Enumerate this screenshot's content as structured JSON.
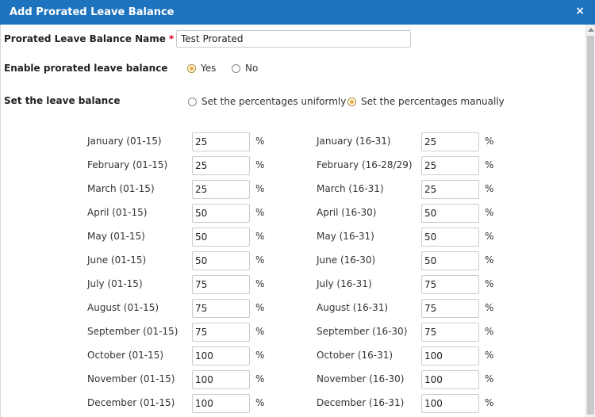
{
  "dialog": {
    "title": "Add Prorated Leave Balance",
    "close_glyph": "×"
  },
  "form": {
    "name_label": "Prorated Leave Balance Name",
    "required_mark": "*",
    "name_value": "Test Prorated",
    "enable_label": "Enable prorated leave balance",
    "enable_options": [
      {
        "label": "Yes",
        "selected": true
      },
      {
        "label": "No",
        "selected": false
      }
    ],
    "balance_label": "Set the leave balance",
    "balance_options": [
      {
        "label": "Set the percentages uniformly",
        "selected": false
      },
      {
        "label": "Set the percentages manually",
        "selected": true
      }
    ],
    "percent_sign": "%"
  },
  "periods_left": [
    {
      "label": "January (01-15)",
      "value": "25"
    },
    {
      "label": "February (01-15)",
      "value": "25"
    },
    {
      "label": "March (01-15)",
      "value": "25"
    },
    {
      "label": "April (01-15)",
      "value": "50"
    },
    {
      "label": "May (01-15)",
      "value": "50"
    },
    {
      "label": "June (01-15)",
      "value": "50"
    },
    {
      "label": "July (01-15)",
      "value": "75"
    },
    {
      "label": "August (01-15)",
      "value": "75"
    },
    {
      "label": "September (01-15)",
      "value": "75"
    },
    {
      "label": "October (01-15)",
      "value": "100"
    },
    {
      "label": "November (01-15)",
      "value": "100"
    },
    {
      "label": "December (01-15)",
      "value": "100"
    }
  ],
  "periods_right": [
    {
      "label": "January (16-31)",
      "value": "25"
    },
    {
      "label": "February (16-28/29)",
      "value": "25"
    },
    {
      "label": "March (16-31)",
      "value": "25"
    },
    {
      "label": "April (16-30)",
      "value": "50"
    },
    {
      "label": "May (16-31)",
      "value": "50"
    },
    {
      "label": "June (16-30)",
      "value": "50"
    },
    {
      "label": "July (16-31)",
      "value": "75"
    },
    {
      "label": "August (16-31)",
      "value": "75"
    },
    {
      "label": "September (16-30)",
      "value": "75"
    },
    {
      "label": "October (16-31)",
      "value": "100"
    },
    {
      "label": "November (16-30)",
      "value": "100"
    },
    {
      "label": "December (16-31)",
      "value": "100"
    }
  ],
  "colors": {
    "titlebar": "#1e73be",
    "radio_selected": "#f0a830",
    "required": "#d0021b"
  }
}
